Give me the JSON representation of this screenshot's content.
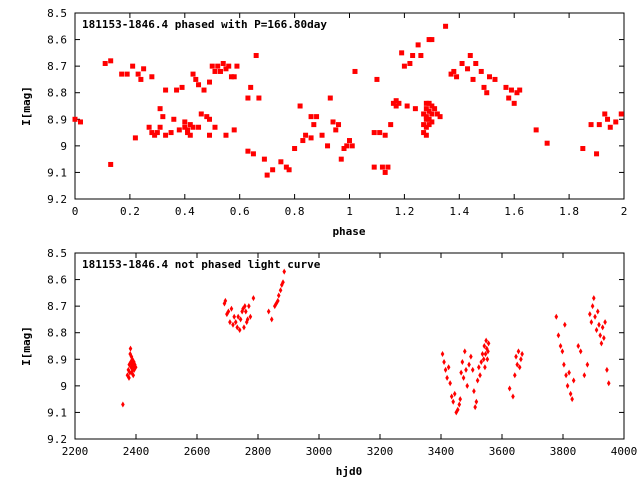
{
  "chart_data": [
    {
      "type": "scatter",
      "title": "181153-1846.4 phased with P=166.80day",
      "xlabel": "phase",
      "ylabel": "I[mag]",
      "xlim": [
        0,
        2
      ],
      "ylim": [
        9.2,
        8.5
      ],
      "y_inverted": true,
      "grid": false,
      "marker_color": "#ff0000",
      "marker": "square",
      "xticks": [
        0,
        0.2,
        0.4,
        0.6,
        0.8,
        1,
        1.2,
        1.4,
        1.6,
        1.8,
        2
      ],
      "xtick_labels": [
        "0",
        "0.2",
        "0.4",
        "0.6",
        "0.8",
        "1",
        "1.2",
        "1.4",
        "1.6",
        "1.8",
        "2"
      ],
      "yticks": [
        8.5,
        8.6,
        8.7,
        8.8,
        8.9,
        9.0,
        9.1,
        9.2
      ],
      "ytick_labels": [
        "8.5",
        "8.6",
        "8.7",
        "8.8",
        "8.9",
        "9",
        "9.1",
        "9.2"
      ],
      "points": [
        [
          0.0,
          8.9
        ],
        [
          0.02,
          8.91
        ],
        [
          0.11,
          8.69
        ],
        [
          0.13,
          8.68
        ],
        [
          0.13,
          9.07
        ],
        [
          0.17,
          8.73
        ],
        [
          0.19,
          8.73
        ],
        [
          0.21,
          8.7
        ],
        [
          0.22,
          8.97
        ],
        [
          0.23,
          8.73
        ],
        [
          0.24,
          8.75
        ],
        [
          0.25,
          8.71
        ],
        [
          0.27,
          8.93
        ],
        [
          0.28,
          8.74
        ],
        [
          0.28,
          8.95
        ],
        [
          0.29,
          8.96
        ],
        [
          0.3,
          8.95
        ],
        [
          0.31,
          8.86
        ],
        [
          0.31,
          8.93
        ],
        [
          0.32,
          8.89
        ],
        [
          0.33,
          8.79
        ],
        [
          0.33,
          8.96
        ],
        [
          0.35,
          8.95
        ],
        [
          0.36,
          8.9
        ],
        [
          0.37,
          8.79
        ],
        [
          0.38,
          8.94
        ],
        [
          0.39,
          8.78
        ],
        [
          0.4,
          8.91
        ],
        [
          0.4,
          8.93
        ],
        [
          0.41,
          8.94
        ],
        [
          0.41,
          8.95
        ],
        [
          0.42,
          8.92
        ],
        [
          0.42,
          8.96
        ],
        [
          0.43,
          8.73
        ],
        [
          0.43,
          8.93
        ],
        [
          0.44,
          8.75
        ],
        [
          0.45,
          8.77
        ],
        [
          0.45,
          8.93
        ],
        [
          0.46,
          8.88
        ],
        [
          0.47,
          8.79
        ],
        [
          0.48,
          8.89
        ],
        [
          0.49,
          8.76
        ],
        [
          0.49,
          8.9
        ],
        [
          0.49,
          8.96
        ],
        [
          0.5,
          8.7
        ],
        [
          0.51,
          8.72
        ],
        [
          0.51,
          8.93
        ],
        [
          0.52,
          8.7
        ],
        [
          0.53,
          8.72
        ],
        [
          0.54,
          8.69
        ],
        [
          0.55,
          8.71
        ],
        [
          0.55,
          8.96
        ],
        [
          0.56,
          8.7
        ],
        [
          0.57,
          8.74
        ],
        [
          0.58,
          8.74
        ],
        [
          0.58,
          8.94
        ],
        [
          0.59,
          8.7
        ],
        [
          0.63,
          8.82
        ],
        [
          0.63,
          9.02
        ],
        [
          0.64,
          8.78
        ],
        [
          0.65,
          9.03
        ],
        [
          0.66,
          8.66
        ],
        [
          0.67,
          8.82
        ],
        [
          0.69,
          9.05
        ],
        [
          0.7,
          9.11
        ],
        [
          0.72,
          9.09
        ],
        [
          0.75,
          9.06
        ],
        [
          0.77,
          9.08
        ],
        [
          0.78,
          9.09
        ],
        [
          0.8,
          9.01
        ],
        [
          0.82,
          8.85
        ],
        [
          0.83,
          8.98
        ],
        [
          0.84,
          8.96
        ],
        [
          0.86,
          8.89
        ],
        [
          0.86,
          8.97
        ],
        [
          0.87,
          8.92
        ],
        [
          0.88,
          8.89
        ],
        [
          0.9,
          8.96
        ],
        [
          0.92,
          9.0
        ],
        [
          0.93,
          8.82
        ],
        [
          0.94,
          8.91
        ],
        [
          0.95,
          8.94
        ],
        [
          0.96,
          8.92
        ],
        [
          0.97,
          9.05
        ],
        [
          0.98,
          9.01
        ],
        [
          0.99,
          9.0
        ],
        [
          1.0,
          8.98
        ],
        [
          1.01,
          9.0
        ],
        [
          1.02,
          8.72
        ],
        [
          1.09,
          9.08
        ],
        [
          1.09,
          8.95
        ],
        [
          1.1,
          8.75
        ],
        [
          1.11,
          8.95
        ],
        [
          1.12,
          9.08
        ],
        [
          1.13,
          9.1
        ],
        [
          1.13,
          8.96
        ],
        [
          1.14,
          9.08
        ],
        [
          1.15,
          8.92
        ],
        [
          1.16,
          8.84
        ],
        [
          1.17,
          8.83
        ],
        [
          1.17,
          8.85
        ],
        [
          1.18,
          8.84
        ],
        [
          1.19,
          8.65
        ],
        [
          1.2,
          8.7
        ],
        [
          1.21,
          8.85
        ],
        [
          1.22,
          8.69
        ],
        [
          1.23,
          8.66
        ],
        [
          1.24,
          8.86
        ],
        [
          1.25,
          8.62
        ],
        [
          1.26,
          8.66
        ],
        [
          1.27,
          8.88
        ],
        [
          1.27,
          8.92
        ],
        [
          1.27,
          8.95
        ],
        [
          1.28,
          8.84
        ],
        [
          1.28,
          8.86
        ],
        [
          1.28,
          8.89
        ],
        [
          1.28,
          8.9
        ],
        [
          1.28,
          8.93
        ],
        [
          1.28,
          8.96
        ],
        [
          1.29,
          8.6
        ],
        [
          1.29,
          8.84
        ],
        [
          1.29,
          8.87
        ],
        [
          1.29,
          8.9
        ],
        [
          1.29,
          8.92
        ],
        [
          1.3,
          8.6
        ],
        [
          1.3,
          8.85
        ],
        [
          1.3,
          8.88
        ],
        [
          1.3,
          8.91
        ],
        [
          1.31,
          8.86
        ],
        [
          1.32,
          8.88
        ],
        [
          1.33,
          8.89
        ],
        [
          1.35,
          8.55
        ],
        [
          1.37,
          8.73
        ],
        [
          1.38,
          8.72
        ],
        [
          1.39,
          8.74
        ],
        [
          1.41,
          8.69
        ],
        [
          1.43,
          8.71
        ],
        [
          1.44,
          8.66
        ],
        [
          1.45,
          8.75
        ],
        [
          1.46,
          8.69
        ],
        [
          1.48,
          8.72
        ],
        [
          1.49,
          8.78
        ],
        [
          1.5,
          8.8
        ],
        [
          1.51,
          8.74
        ],
        [
          1.53,
          8.75
        ],
        [
          1.57,
          8.78
        ],
        [
          1.58,
          8.82
        ],
        [
          1.59,
          8.79
        ],
        [
          1.6,
          8.84
        ],
        [
          1.61,
          8.8
        ],
        [
          1.62,
          8.79
        ],
        [
          1.68,
          8.94
        ],
        [
          1.72,
          8.99
        ],
        [
          1.85,
          9.01
        ],
        [
          1.88,
          8.92
        ],
        [
          1.9,
          9.03
        ],
        [
          1.91,
          8.92
        ],
        [
          1.93,
          8.88
        ],
        [
          1.94,
          8.9
        ],
        [
          1.95,
          8.93
        ],
        [
          1.97,
          8.91
        ],
        [
          1.99,
          8.88
        ]
      ]
    },
    {
      "type": "scatter",
      "title": "181153-1846.4 not phased light curve",
      "xlabel": "hjd0",
      "ylabel": "I[mag]",
      "xlim": [
        2200,
        4000
      ],
      "ylim": [
        9.2,
        8.5
      ],
      "y_inverted": true,
      "grid": false,
      "marker_color": "#ff0000",
      "marker": "diamond",
      "xticks": [
        2200,
        2400,
        2600,
        2800,
        3000,
        3200,
        3400,
        3600,
        3800,
        4000
      ],
      "xtick_labels": [
        "2200",
        "2400",
        "2600",
        "2800",
        "3000",
        "3200",
        "3400",
        "3600",
        "3800",
        "4000"
      ],
      "yticks": [
        8.5,
        8.6,
        8.7,
        8.8,
        8.9,
        9.0,
        9.1,
        9.2
      ],
      "ytick_labels": [
        "8.5",
        "8.6",
        "8.7",
        "8.8",
        "8.9",
        "9",
        "9.1",
        "9.2"
      ],
      "points": [
        [
          2357,
          9.07
        ],
        [
          2372,
          8.96
        ],
        [
          2375,
          8.94
        ],
        [
          2377,
          8.97
        ],
        [
          2378,
          8.92
        ],
        [
          2380,
          8.95
        ],
        [
          2381,
          8.88
        ],
        [
          2382,
          8.86
        ],
        [
          2383,
          8.91
        ],
        [
          2384,
          8.93
        ],
        [
          2385,
          8.89
        ],
        [
          2386,
          8.95
        ],
        [
          2387,
          8.92
        ],
        [
          2388,
          8.9
        ],
        [
          2389,
          8.94
        ],
        [
          2390,
          8.92
        ],
        [
          2391,
          8.96
        ],
        [
          2392,
          8.93
        ],
        [
          2393,
          8.91
        ],
        [
          2394,
          8.94
        ],
        [
          2396,
          8.92
        ],
        [
          2399,
          8.93
        ],
        [
          2690,
          8.69
        ],
        [
          2693,
          8.68
        ],
        [
          2698,
          8.73
        ],
        [
          2703,
          8.72
        ],
        [
          2708,
          8.76
        ],
        [
          2713,
          8.71
        ],
        [
          2718,
          8.77
        ],
        [
          2722,
          8.74
        ],
        [
          2727,
          8.76
        ],
        [
          2732,
          8.78
        ],
        [
          2735,
          8.74
        ],
        [
          2740,
          8.79
        ],
        [
          2743,
          8.75
        ],
        [
          2748,
          8.72
        ],
        [
          2751,
          8.71
        ],
        [
          2754,
          8.78
        ],
        [
          2757,
          8.7
        ],
        [
          2760,
          8.72
        ],
        [
          2763,
          8.76
        ],
        [
          2766,
          8.75
        ],
        [
          2770,
          8.7
        ],
        [
          2775,
          8.74
        ],
        [
          2785,
          8.67
        ],
        [
          2835,
          8.72
        ],
        [
          2845,
          8.75
        ],
        [
          2855,
          8.7
        ],
        [
          2860,
          8.69
        ],
        [
          2865,
          8.68
        ],
        [
          2868,
          8.66
        ],
        [
          2874,
          8.64
        ],
        [
          2878,
          8.62
        ],
        [
          2882,
          8.61
        ],
        [
          2886,
          8.57
        ],
        [
          3405,
          8.88
        ],
        [
          3410,
          8.91
        ],
        [
          3415,
          8.94
        ],
        [
          3420,
          8.97
        ],
        [
          3425,
          8.93
        ],
        [
          3430,
          8.99
        ],
        [
          3435,
          9.04
        ],
        [
          3440,
          9.06
        ],
        [
          3445,
          9.03
        ],
        [
          3450,
          9.1
        ],
        [
          3455,
          9.09
        ],
        [
          3460,
          9.07
        ],
        [
          3463,
          9.05
        ],
        [
          3466,
          8.95
        ],
        [
          3470,
          8.91
        ],
        [
          3474,
          8.97
        ],
        [
          3478,
          8.87
        ],
        [
          3482,
          8.94
        ],
        [
          3486,
          9.0
        ],
        [
          3492,
          8.92
        ],
        [
          3498,
          8.89
        ],
        [
          3504,
          8.94
        ],
        [
          3508,
          9.02
        ],
        [
          3512,
          9.08
        ],
        [
          3516,
          9.06
        ],
        [
          3520,
          8.98
        ],
        [
          3524,
          8.93
        ],
        [
          3528,
          8.96
        ],
        [
          3532,
          8.91
        ],
        [
          3536,
          8.88
        ],
        [
          3540,
          8.9
        ],
        [
          3542,
          8.85
        ],
        [
          3544,
          8.93
        ],
        [
          3546,
          8.88
        ],
        [
          3548,
          8.83
        ],
        [
          3550,
          8.86
        ],
        [
          3552,
          8.9
        ],
        [
          3554,
          8.87
        ],
        [
          3556,
          8.84
        ],
        [
          3625,
          9.01
        ],
        [
          3636,
          9.04
        ],
        [
          3642,
          8.96
        ],
        [
          3646,
          8.89
        ],
        [
          3650,
          8.92
        ],
        [
          3654,
          8.87
        ],
        [
          3658,
          8.93
        ],
        [
          3662,
          8.9
        ],
        [
          3666,
          8.88
        ],
        [
          3778,
          8.74
        ],
        [
          3785,
          8.81
        ],
        [
          3792,
          8.85
        ],
        [
          3798,
          8.87
        ],
        [
          3803,
          8.92
        ],
        [
          3806,
          8.77
        ],
        [
          3810,
          8.96
        ],
        [
          3815,
          9.0
        ],
        [
          3820,
          8.95
        ],
        [
          3825,
          9.03
        ],
        [
          3830,
          9.05
        ],
        [
          3835,
          8.98
        ],
        [
          3850,
          8.85
        ],
        [
          3858,
          8.87
        ],
        [
          3870,
          8.96
        ],
        [
          3880,
          8.92
        ],
        [
          3888,
          8.73
        ],
        [
          3893,
          8.76
        ],
        [
          3897,
          8.7
        ],
        [
          3901,
          8.67
        ],
        [
          3905,
          8.74
        ],
        [
          3910,
          8.79
        ],
        [
          3914,
          8.72
        ],
        [
          3918,
          8.77
        ],
        [
          3922,
          8.81
        ],
        [
          3926,
          8.84
        ],
        [
          3930,
          8.78
        ],
        [
          3934,
          8.82
        ],
        [
          3938,
          8.76
        ],
        [
          3944,
          8.94
        ],
        [
          3950,
          8.99
        ]
      ]
    }
  ]
}
